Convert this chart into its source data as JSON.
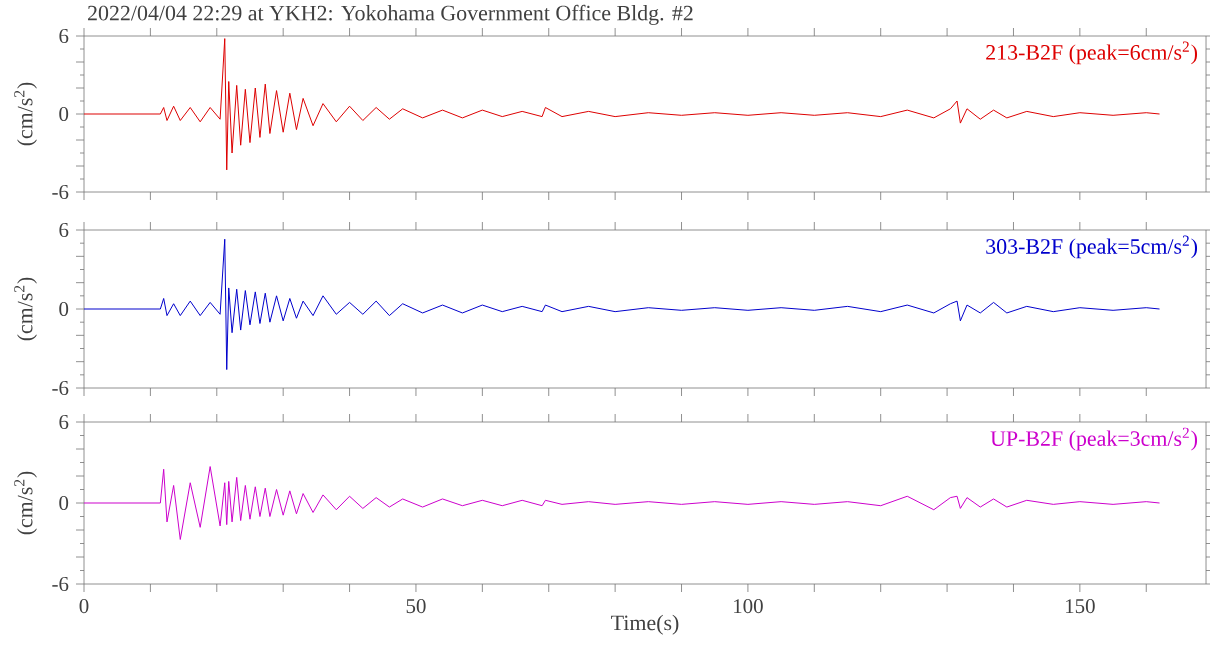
{
  "chart_data": [
    {
      "type": "line",
      "title": "2022/04/04 22:29 at YKH2: Yokohama Government Office Bldg. #2",
      "ylabel": "(cm/s$^{2}$)",
      "tick_labels": "y",
      "xlim": [
        0,
        169
      ],
      "ylim": [
        -6,
        6
      ],
      "xticks": [
        0,
        {
          "value": 10,
          "label": null
        },
        {
          "value": 20,
          "label": null
        },
        {
          "value": 30,
          "label": null
        },
        {
          "value": 40,
          "label": null
        },
        50,
        {
          "value": 60,
          "label": null
        },
        {
          "value": 70,
          "label": null
        },
        {
          "value": 80,
          "label": null
        },
        {
          "value": 90,
          "label": null
        },
        100,
        {
          "value": 110,
          "label": null
        },
        {
          "value": 120,
          "label": null
        },
        {
          "value": 130,
          "label": null
        },
        {
          "value": 140,
          "label": null
        },
        150,
        {
          "value": 160,
          "label": null
        }
      ],
      "yticks": [
        -6,
        {
          "value": -4,
          "label": null
        },
        {
          "value": -2,
          "label": null
        },
        0,
        {
          "value": 2,
          "label": null
        },
        {
          "value": 4,
          "label": null
        },
        6
      ],
      "x": [
        0,
        11.5,
        12,
        12.5,
        13.5,
        14.5,
        16,
        17.5,
        19,
        20.5,
        21.2,
        21.5,
        21.8,
        22.3,
        23,
        23.6,
        24.3,
        25,
        25.8,
        26.5,
        27.3,
        28,
        29,
        30,
        31,
        32,
        33,
        34.5,
        36,
        38,
        40,
        42,
        44,
        46,
        48,
        51,
        54,
        57,
        60,
        63,
        66,
        69,
        69.5,
        72,
        76,
        80,
        85,
        90,
        95,
        100,
        105,
        110,
        115,
        120,
        124,
        128,
        130.5,
        131.5,
        132,
        133,
        135,
        137,
        139,
        142,
        146,
        150,
        155,
        160,
        162
      ],
      "series": [
        {
          "name": "213-B2F (peak=6cm/s$^{2}$)",
          "color": "#dd0000",
          "values": [
            0,
            0,
            0.5,
            -0.5,
            0.6,
            -0.5,
            0.5,
            -0.6,
            0.5,
            -0.4,
            5.8,
            -4.3,
            2.5,
            -3,
            2.2,
            -2.4,
            1.9,
            -2.2,
            2,
            -1.8,
            2.3,
            -1.5,
            1.8,
            -1.4,
            1.6,
            -1.2,
            1.2,
            -0.9,
            0.8,
            -0.6,
            0.6,
            -0.5,
            0.5,
            -0.4,
            0.4,
            -0.3,
            0.3,
            -0.3,
            0.3,
            -0.2,
            0.2,
            -0.2,
            0.5,
            -0.2,
            0.2,
            -0.2,
            0.1,
            -0.1,
            0.1,
            -0.1,
            0.1,
            -0.1,
            0.1,
            -0.2,
            0.3,
            -0.3,
            0.4,
            1,
            -0.7,
            0.4,
            -0.4,
            0.3,
            -0.3,
            0.2,
            -0.2,
            0.1,
            -0.1,
            0.1,
            0
          ]
        }
      ]
    },
    {
      "type": "line",
      "ylabel": "(cm/s$^{2}$)",
      "tick_labels": "y",
      "xlim": [
        0,
        169
      ],
      "ylim": [
        -6,
        6
      ],
      "xticks": [
        0,
        {
          "value": 10,
          "label": null
        },
        {
          "value": 20,
          "label": null
        },
        {
          "value": 30,
          "label": null
        },
        {
          "value": 40,
          "label": null
        },
        50,
        {
          "value": 60,
          "label": null
        },
        {
          "value": 70,
          "label": null
        },
        {
          "value": 80,
          "label": null
        },
        {
          "value": 90,
          "label": null
        },
        100,
        {
          "value": 110,
          "label": null
        },
        {
          "value": 120,
          "label": null
        },
        {
          "value": 130,
          "label": null
        },
        {
          "value": 140,
          "label": null
        },
        150,
        {
          "value": 160,
          "label": null
        }
      ],
      "yticks": [
        -6,
        {
          "value": -4,
          "label": null
        },
        {
          "value": -2,
          "label": null
        },
        0,
        {
          "value": 2,
          "label": null
        },
        {
          "value": 4,
          "label": null
        },
        6
      ],
      "x": [
        0,
        11.5,
        12,
        12.5,
        13.5,
        14.5,
        16,
        17.5,
        19,
        20.5,
        21.2,
        21.5,
        21.8,
        22.3,
        23,
        23.6,
        24.3,
        25,
        25.8,
        26.5,
        27.3,
        28,
        29,
        30,
        31,
        32,
        33,
        34.5,
        36,
        38,
        40,
        42,
        44,
        46,
        48,
        51,
        54,
        57,
        60,
        63,
        66,
        69,
        69.5,
        72,
        76,
        80,
        85,
        90,
        95,
        100,
        105,
        110,
        115,
        120,
        124,
        128,
        130.5,
        131.5,
        132,
        133,
        135,
        137,
        139,
        142,
        146,
        150,
        155,
        160,
        162
      ],
      "series": [
        {
          "name": "303-B2F (peak=5cm/s$^{2}$)",
          "color": "#0000cc",
          "values": [
            0,
            0,
            0.8,
            -0.5,
            0.4,
            -0.5,
            0.6,
            -0.5,
            0.5,
            -0.4,
            5.3,
            -4.6,
            1.6,
            -1.8,
            1.5,
            -1.6,
            1.4,
            -1.2,
            1.3,
            -1.1,
            1.2,
            -1,
            1,
            -0.9,
            0.8,
            -0.7,
            0.6,
            -0.5,
            1,
            -0.4,
            0.5,
            -0.4,
            0.6,
            -0.5,
            0.4,
            -0.3,
            0.3,
            -0.3,
            0.3,
            -0.2,
            0.2,
            -0.2,
            0.3,
            -0.2,
            0.2,
            -0.2,
            0.1,
            -0.1,
            0.1,
            -0.1,
            0.1,
            -0.1,
            0.2,
            -0.2,
            0.3,
            -0.3,
            0.4,
            0.6,
            -0.9,
            0.3,
            -0.3,
            0.5,
            -0.3,
            0.2,
            -0.2,
            0.1,
            -0.1,
            0.1,
            0
          ]
        }
      ]
    },
    {
      "type": "line",
      "ylabel": "(cm/s$^{2}$)",
      "xlabel": "Time(s)",
      "xlim": [
        0,
        169
      ],
      "ylim": [
        -6,
        6
      ],
      "xticks": [
        0,
        {
          "value": 10,
          "label": null
        },
        {
          "value": 20,
          "label": null
        },
        {
          "value": 30,
          "label": null
        },
        {
          "value": 40,
          "label": null
        },
        50,
        {
          "value": 60,
          "label": null
        },
        {
          "value": 70,
          "label": null
        },
        {
          "value": 80,
          "label": null
        },
        {
          "value": 90,
          "label": null
        },
        100,
        {
          "value": 110,
          "label": null
        },
        {
          "value": 120,
          "label": null
        },
        {
          "value": 130,
          "label": null
        },
        {
          "value": 140,
          "label": null
        },
        150,
        {
          "value": 160,
          "label": null
        }
      ],
      "yticks": [
        -6,
        {
          "value": -4,
          "label": null
        },
        {
          "value": -2,
          "label": null
        },
        0,
        {
          "value": 2,
          "label": null
        },
        {
          "value": 4,
          "label": null
        },
        6
      ],
      "x": [
        0,
        11.5,
        12,
        12.5,
        13.5,
        14.5,
        16,
        17.5,
        19,
        20.5,
        21.2,
        21.5,
        21.8,
        22.3,
        23,
        23.6,
        24.3,
        25,
        25.8,
        26.5,
        27.3,
        28,
        29,
        30,
        31,
        32,
        33,
        34.5,
        36,
        38,
        40,
        42,
        44,
        46,
        48,
        51,
        54,
        57,
        60,
        63,
        66,
        69,
        69.5,
        72,
        76,
        80,
        85,
        90,
        95,
        100,
        105,
        110,
        115,
        120,
        124,
        128,
        130.5,
        131.5,
        132,
        133,
        135,
        137,
        139,
        142,
        146,
        150,
        155,
        160,
        162
      ],
      "series": [
        {
          "name": "UP-B2F (peak=3cm/s$^{2}$)",
          "color": "#cc00cc",
          "values": [
            0,
            0,
            2.5,
            -1.4,
            1.3,
            -2.7,
            1.5,
            -1.8,
            2.7,
            -1.7,
            1.5,
            -1.6,
            1.6,
            -1.4,
            1.9,
            -1.3,
            1.3,
            -1.2,
            1.2,
            -1,
            1.1,
            -1,
            1,
            -0.9,
            0.9,
            -0.8,
            0.7,
            -0.7,
            0.6,
            -0.5,
            0.5,
            -0.4,
            0.4,
            -0.3,
            0.3,
            -0.3,
            0.3,
            -0.2,
            0.2,
            -0.2,
            0.2,
            -0.2,
            0.2,
            -0.1,
            0.1,
            -0.1,
            0.1,
            -0.1,
            0.1,
            -0.1,
            0.1,
            -0.1,
            0.1,
            -0.2,
            0.5,
            -0.5,
            0.4,
            0.5,
            -0.4,
            0.4,
            -0.3,
            0.3,
            -0.3,
            0.2,
            -0.1,
            0.1,
            -0.1,
            0.1,
            0
          ]
        }
      ]
    }
  ]
}
